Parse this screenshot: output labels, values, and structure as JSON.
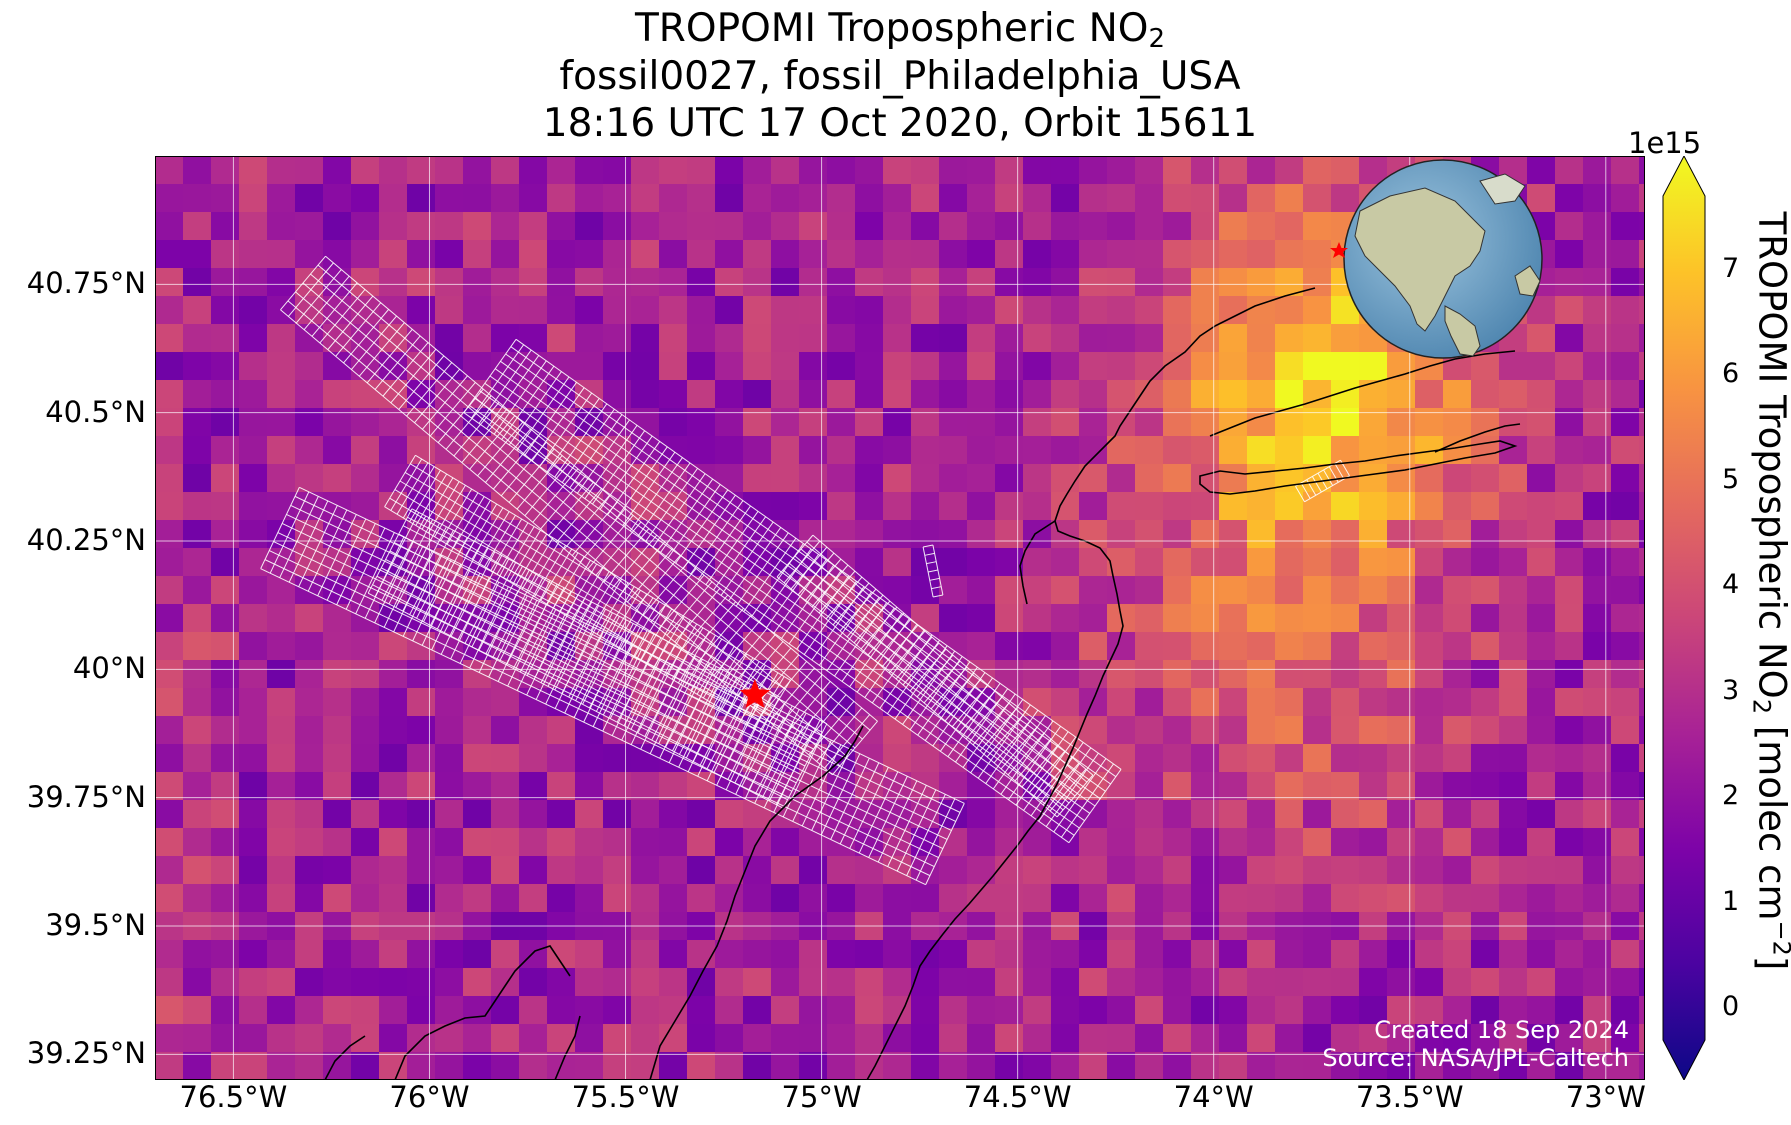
{
  "title": {
    "line1_prefix": "TROPOMI Tropospheric NO",
    "line1_sub": "2",
    "line2": "fossil0027, fossil_Philadelphia_USA",
    "line3": "18:16 UTC 17 Oct 2020, Orbit 15611"
  },
  "map": {
    "lon_range": [
      -76.7,
      -72.9
    ],
    "lat_range": [
      39.2,
      41.0
    ],
    "lat_ticks": [
      {
        "value": 40.75,
        "label": "40.75°N"
      },
      {
        "value": 40.5,
        "label": "40.5°N"
      },
      {
        "value": 40.25,
        "label": "40.25°N"
      },
      {
        "value": 40.0,
        "label": "40°N"
      },
      {
        "value": 39.75,
        "label": "39.75°N"
      },
      {
        "value": 39.5,
        "label": "39.5°N"
      },
      {
        "value": 39.25,
        "label": "39.25°N"
      }
    ],
    "lon_ticks": [
      {
        "value": -76.5,
        "label": "76.5°W"
      },
      {
        "value": -76.0,
        "label": "76°W"
      },
      {
        "value": -75.5,
        "label": "75.5°W"
      },
      {
        "value": -75.0,
        "label": "75°W"
      },
      {
        "value": -74.5,
        "label": "74.5°W"
      },
      {
        "value": -74.0,
        "label": "74°W"
      },
      {
        "value": -73.5,
        "label": "73.5°W"
      },
      {
        "value": -73.0,
        "label": "73°W"
      }
    ],
    "site_marker": {
      "lon": -75.17,
      "lat": 39.95,
      "color": "#ff0000"
    },
    "hotspot_nyc": {
      "lon": -73.75,
      "lat": 40.6
    }
  },
  "colorbar": {
    "exponent_label": "1e15",
    "ticks": [
      "0",
      "1",
      "2",
      "3",
      "4",
      "5",
      "6",
      "7"
    ],
    "range": [
      -0.3,
      7.7
    ],
    "label_prefix": "TROPOMI Tropospheric NO",
    "label_sub": "2",
    "label_mid": " [molec cm",
    "label_sup": "−2",
    "label_end": "]",
    "colormap": "plasma"
  },
  "inset_globe": {
    "ocean_color": "#6fa3c9",
    "land_color": "#c8c9a4",
    "marker_color": "#ff0000"
  },
  "credits": {
    "line1": "Created 18 Sep 2024",
    "line2": "Source: NASA/JPL-Caltech"
  }
}
